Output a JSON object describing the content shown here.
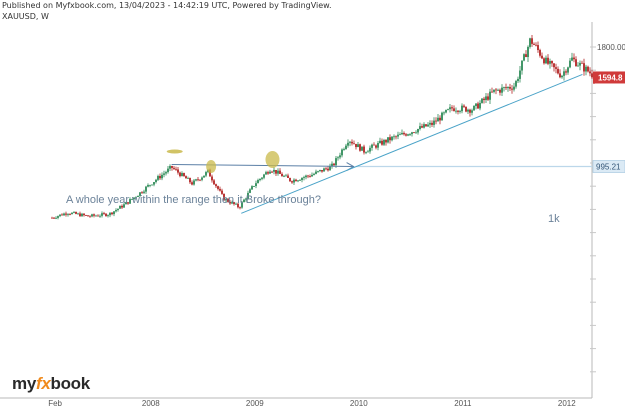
{
  "header": {
    "published": "Published on Myfxbook.com, 13/04/2023 - 14:42:19 UTC, Powered by TradingView.",
    "symbol": "XAUUSD, W"
  },
  "logo": {
    "my": "my",
    "fx": "fx",
    "book": "book"
  },
  "colors": {
    "up": "#2e8b57",
    "down": "#b22222",
    "trendline": "#4aa3c8",
    "hline": "#5b7fa6",
    "annotation_text": "#6b8299",
    "highlight": "#c9b94a",
    "price_tag": "#d03a3a",
    "level_tag": "#dbeaf5"
  },
  "chart_data": {
    "type": "candlestick",
    "symbol": "XAUUSD",
    "interval": "W",
    "x_tick_labels": [
      "Feb",
      "2008",
      "2009",
      "2010",
      "2011",
      "2012"
    ],
    "y_labels": [
      "1800.00"
    ],
    "current_price_label": "1594.8",
    "level_label": "995.21",
    "annotations": {
      "text": "A whole year within the range then it Broke through?",
      "level_text": "1k"
    },
    "ohlc": [
      {
        "t": 2007.05,
        "close": 650
      },
      {
        "t": 2007.2,
        "close": 685
      },
      {
        "t": 2007.4,
        "close": 660
      },
      {
        "t": 2007.6,
        "close": 675
      },
      {
        "t": 2007.75,
        "close": 740
      },
      {
        "t": 2007.9,
        "close": 820
      },
      {
        "t": 2008.0,
        "close": 880
      },
      {
        "t": 2008.2,
        "close": 990
      },
      {
        "t": 2008.4,
        "close": 880
      },
      {
        "t": 2008.55,
        "close": 960
      },
      {
        "t": 2008.7,
        "close": 780
      },
      {
        "t": 2008.85,
        "close": 720
      },
      {
        "t": 2009.0,
        "close": 880
      },
      {
        "t": 2009.15,
        "close": 980
      },
      {
        "t": 2009.35,
        "close": 900
      },
      {
        "t": 2009.55,
        "close": 940
      },
      {
        "t": 2009.75,
        "close": 1000
      },
      {
        "t": 2009.9,
        "close": 1180
      },
      {
        "t": 2010.05,
        "close": 1100
      },
      {
        "t": 2010.3,
        "close": 1180
      },
      {
        "t": 2010.5,
        "close": 1230
      },
      {
        "t": 2010.7,
        "close": 1280
      },
      {
        "t": 2010.9,
        "close": 1390
      },
      {
        "t": 2011.1,
        "close": 1380
      },
      {
        "t": 2011.3,
        "close": 1500
      },
      {
        "t": 2011.5,
        "close": 1540
      },
      {
        "t": 2011.65,
        "close": 1850
      },
      {
        "t": 2011.8,
        "close": 1700
      },
      {
        "t": 2011.95,
        "close": 1610
      },
      {
        "t": 2012.05,
        "close": 1720
      },
      {
        "t": 2012.2,
        "close": 1640
      },
      {
        "t": 2012.28,
        "close": 1595
      }
    ]
  }
}
